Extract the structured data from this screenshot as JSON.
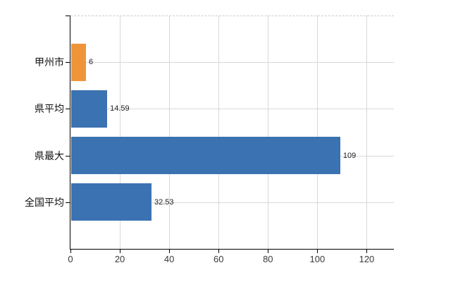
{
  "chart_data": {
    "type": "bar",
    "orientation": "horizontal",
    "title": "",
    "xlabel": "",
    "ylabel": "",
    "categories": [
      "甲州市",
      "県平均",
      "県最大",
      "全国平均"
    ],
    "values": [
      6,
      14.59,
      109,
      32.53
    ],
    "value_labels": [
      "6",
      "14.59",
      "109",
      "32.53"
    ],
    "bar_colors": [
      "#EF9539",
      "#3B72B1",
      "#3B72B1",
      "#3B72B1"
    ],
    "x_ticks": [
      0,
      20,
      40,
      60,
      80,
      100,
      120
    ],
    "xlim": [
      0,
      131
    ],
    "grid": true,
    "legend": "none",
    "palette": {
      "highlight_bar": "#EF9539",
      "default_bar": "#3B72B1",
      "gridline": "#d8d8d8",
      "top_border": "#c9c9c9",
      "axis": "#000000",
      "tick_label": "#3a3a3a",
      "category_label": "#111111",
      "value_label": "#222222",
      "background": "#ffffff"
    }
  }
}
